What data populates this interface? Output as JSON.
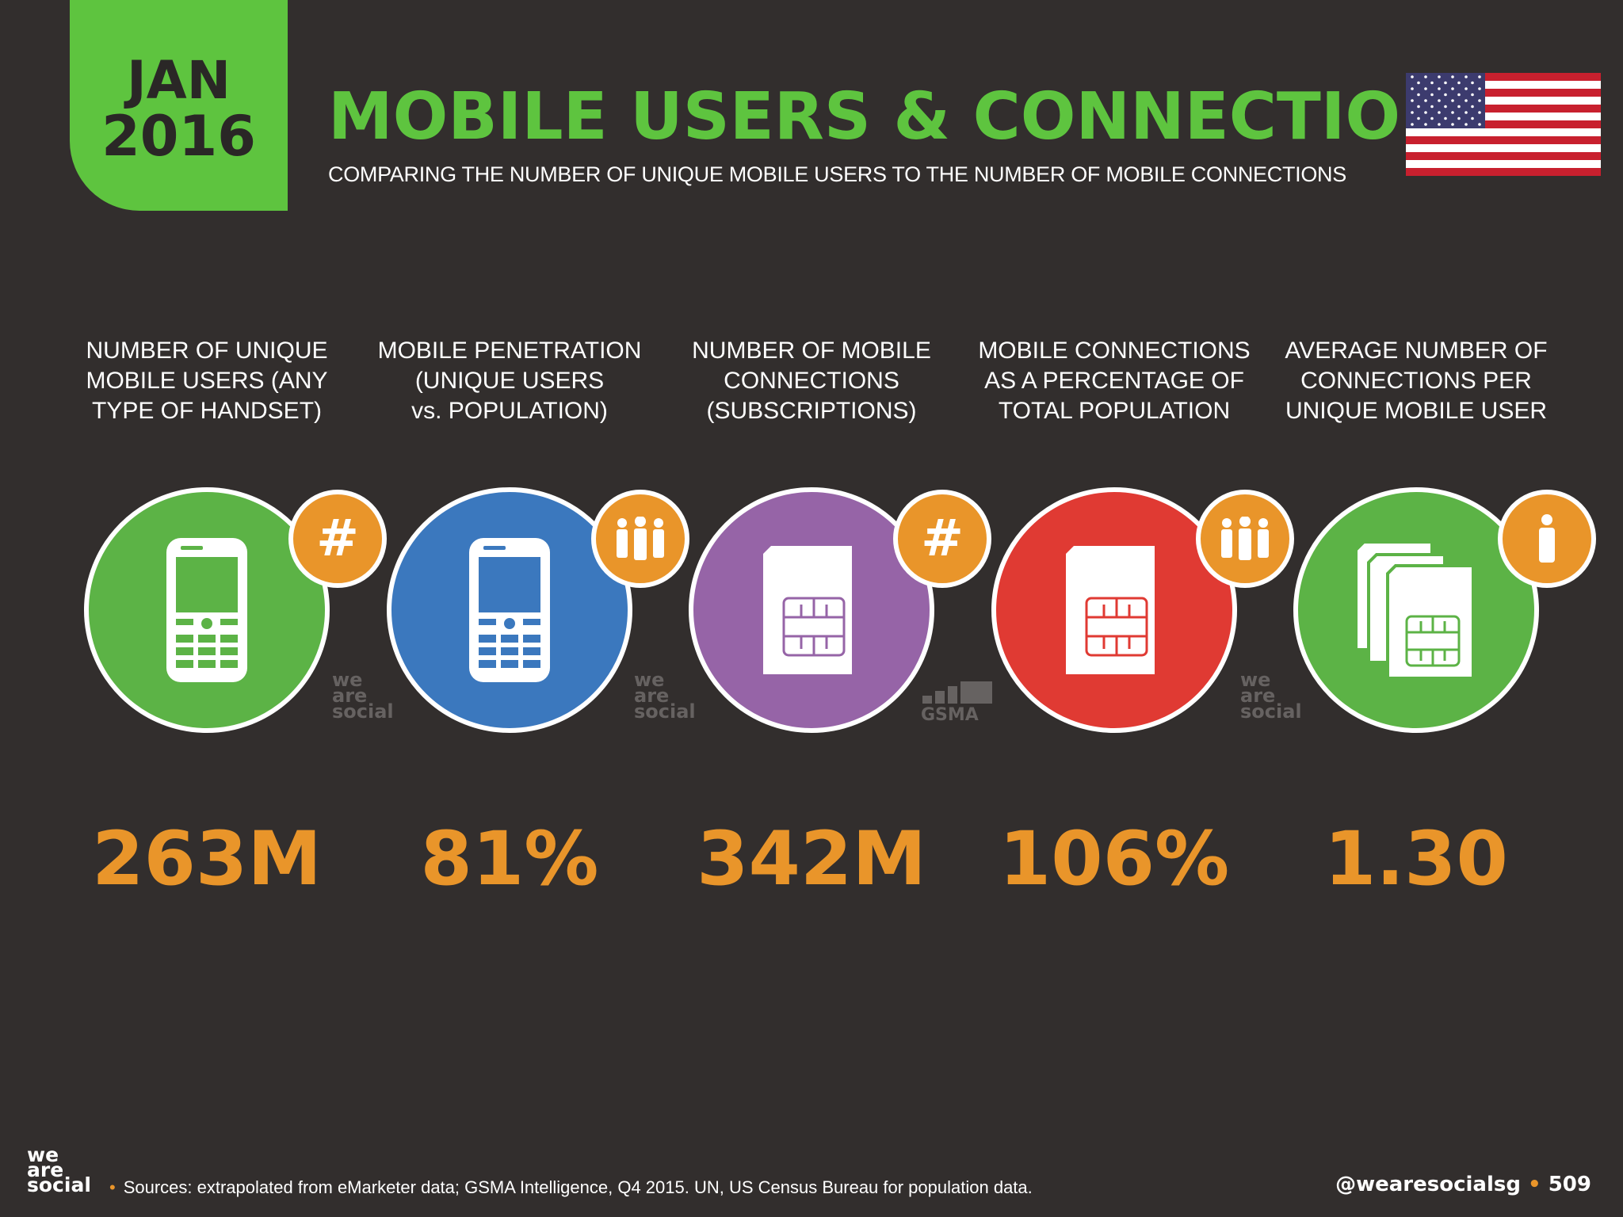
{
  "header": {
    "month": "JAN",
    "year": "2016",
    "title": "MOBILE USERS & CONNECTIONS",
    "subtitle": "COMPARING THE NUMBER OF UNIQUE MOBILE USERS TO THE NUMBER OF MOBILE CONNECTIONS",
    "flag": "usa-flag"
  },
  "colors": {
    "green": "#5ec43f",
    "blue": "#3a78bf",
    "purple": "#9763a8",
    "red": "#e23b32",
    "orange": "#e9952a",
    "background": "#322e2d"
  },
  "stats": [
    {
      "label_lines": [
        "NUMBER OF UNIQUE",
        "MOBILE USERS (ANY",
        "TYPE OF HANDSET)"
      ],
      "value": "263M",
      "icon": "phone-icon",
      "badge": "#",
      "color": "#5cb346"
    },
    {
      "label_lines": [
        "MOBILE PENETRATION",
        "(UNIQUE USERS",
        "vs. POPULATION)"
      ],
      "value": "81%",
      "icon": "phone-icon",
      "badge": "people-icon",
      "color": "#3b78be"
    },
    {
      "label_lines": [
        "NUMBER OF MOBILE",
        "CONNECTIONS",
        "(SUBSCRIPTIONS)"
      ],
      "value": "342M",
      "icon": "sim-card-icon",
      "badge": "#",
      "color": "#9664a7"
    },
    {
      "label_lines": [
        "MOBILE CONNECTIONS",
        "AS A PERCENTAGE OF",
        "TOTAL POPULATION"
      ],
      "value": "106%",
      "icon": "sim-card-icon",
      "badge": "people-icon",
      "color": "#e03a33"
    },
    {
      "label_lines": [
        "AVERAGE NUMBER OF",
        "CONNECTIONS PER",
        "UNIQUE MOBILE USER"
      ],
      "value": "1.30",
      "icon": "sim-cards-stack-icon",
      "badge": "person-icon",
      "color": "#5cb346"
    }
  ],
  "watermarks": {
    "wm_line1": "we",
    "wm_line2": "are",
    "wm_line3": "social",
    "gsma": "GSMA"
  },
  "footer": {
    "logo_line1": "we",
    "logo_line2": "are",
    "logo_line3": "social",
    "bullet": "•",
    "sources": "Sources: extrapolated from eMarketer data; GSMA Intelligence, Q4 2015. UN, US Census Bureau for population data.",
    "handle": "@wearesocialsg",
    "page_number": "509"
  }
}
